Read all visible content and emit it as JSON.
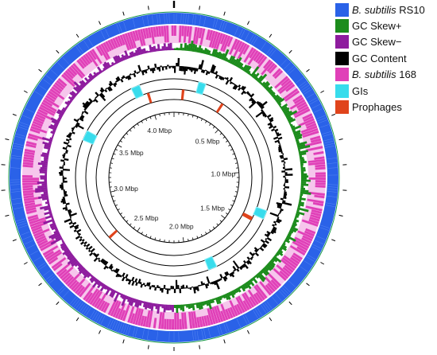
{
  "legend": [
    {
      "italic": "B. subtilis",
      "text": " RS10",
      "color": "#2a62e8",
      "icon": "square-swatch"
    },
    {
      "italic": "",
      "text": "GC Skew+",
      "color": "#1c8c1c",
      "icon": "square-swatch"
    },
    {
      "italic": "",
      "text": "GC Skew−",
      "color": "#8e1c9e",
      "icon": "square-swatch"
    },
    {
      "italic": "",
      "text": "GC Content",
      "color": "#000000",
      "icon": "square-swatch"
    },
    {
      "italic": "B. subtilis",
      "text": " 168",
      "color": "#e040b8",
      "icon": "square-swatch"
    },
    {
      "italic": "",
      "text": "GIs",
      "color": "#38dcec",
      "icon": "square-swatch"
    },
    {
      "italic": "",
      "text": "Prophages",
      "color": "#e0441c",
      "icon": "square-swatch"
    }
  ],
  "genome": {
    "length_mbp": 4.2,
    "tick_labels": [
      "0.5 Mbp",
      "1.0 Mbp",
      "1.5 Mbp",
      "2.0 Mbp",
      "2.5 Mbp",
      "3.0 Mbp",
      "3.5 Mbp",
      "4.0 Mbp"
    ],
    "tick_values_mbp": [
      0.5,
      1.0,
      1.5,
      2.0,
      2.5,
      3.0,
      3.5,
      4.0
    ],
    "gc_skew_switch_mbp": 2.1,
    "genomic_islands_mbp": [
      {
        "start": 0.17,
        "end": 0.22
      },
      {
        "start": 1.28,
        "end": 1.34
      },
      {
        "start": 1.8,
        "end": 1.86
      },
      {
        "start": 3.41,
        "end": 3.48
      },
      {
        "start": 3.9,
        "end": 3.96
      }
    ],
    "prophages_mbp": [
      {
        "start": 0.06,
        "end": 0.08
      },
      {
        "start": 0.38,
        "end": 0.4
      },
      {
        "start": 1.36,
        "end": 1.39
      },
      {
        "start": 2.64,
        "end": 2.66
      },
      {
        "start": 3.99,
        "end": 4.01
      }
    ],
    "colors": {
      "rs10": "#2a62e8",
      "strain168": "#e040b8",
      "strain168_light": "#f6c6ec",
      "gc_skew_plus": "#1c8c1c",
      "gc_skew_minus": "#8e1c9e",
      "gc_content": "#000000",
      "gis": "#38dcec",
      "prophages": "#e0441c"
    }
  }
}
